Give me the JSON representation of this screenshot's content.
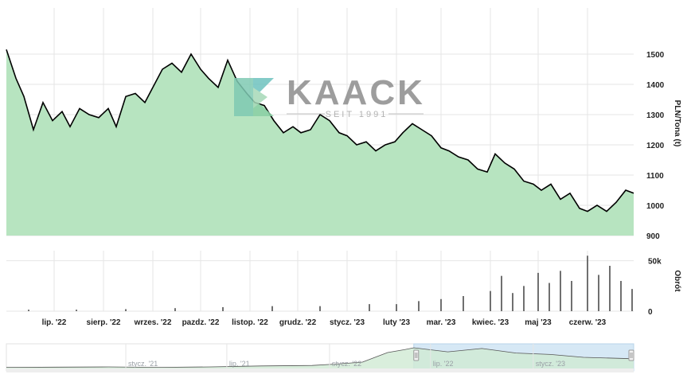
{
  "chart_data": [
    {
      "type": "area",
      "title": "",
      "ylabel": "PLN/Tona (t)",
      "ylim": [
        900,
        1600
      ],
      "yticks": [
        900,
        1000,
        1100,
        1200,
        1300,
        1400,
        1500
      ],
      "x_start": "2022-06-01",
      "x_end": "2023-06-30",
      "x_tick_labels": [
        "lip. '22",
        "sierp. '22",
        "wrzes. '22",
        "pazdz. '22",
        "listop. '22",
        "grudz. '22",
        "stycz. '23",
        "luty '23",
        "mar. '23",
        "kwiec. '23",
        "maj '23",
        "czerw. '23"
      ],
      "x_tick_dates": [
        "2022-07-01",
        "2022-08-01",
        "2022-09-01",
        "2022-10-01",
        "2022-11-01",
        "2022-12-01",
        "2023-01-01",
        "2023-02-01",
        "2023-03-01",
        "2023-04-01",
        "2023-05-01",
        "2023-06-01"
      ],
      "fill_color": "#b7e4c0",
      "line_color": "#000000",
      "series": [
        {
          "x": [
            "2022-06-01",
            "2022-06-07",
            "2022-06-12",
            "2022-06-18",
            "2022-06-24",
            "2022-06-30",
            "2022-07-06",
            "2022-07-11",
            "2022-07-17",
            "2022-07-23",
            "2022-07-29",
            "2022-08-04",
            "2022-08-09",
            "2022-08-15",
            "2022-08-21",
            "2022-08-27",
            "2022-09-02",
            "2022-09-07",
            "2022-09-13",
            "2022-09-19",
            "2022-09-25",
            "2022-10-01",
            "2022-10-06",
            "2022-10-12",
            "2022-10-18",
            "2022-10-24",
            "2022-10-30",
            "2022-11-04",
            "2022-11-10",
            "2022-11-16",
            "2022-11-22",
            "2022-11-28",
            "2022-12-03",
            "2022-12-09",
            "2022-12-15",
            "2022-12-21",
            "2022-12-27",
            "2023-01-01",
            "2023-01-07",
            "2023-01-13",
            "2023-01-19",
            "2023-01-25",
            "2023-01-31",
            "2023-02-05",
            "2023-02-11",
            "2023-02-17",
            "2023-02-23",
            "2023-03-01",
            "2023-03-06",
            "2023-03-12",
            "2023-03-18",
            "2023-03-24",
            "2023-03-30",
            "2023-04-04",
            "2023-04-10",
            "2023-04-16",
            "2023-04-22",
            "2023-04-28",
            "2023-05-03",
            "2023-05-09",
            "2023-05-15",
            "2023-05-21",
            "2023-05-27",
            "2023-06-01",
            "2023-06-07",
            "2023-06-13",
            "2023-06-19",
            "2023-06-25",
            "2023-06-30"
          ],
          "y": [
            1515,
            1420,
            1360,
            1250,
            1340,
            1280,
            1310,
            1260,
            1320,
            1300,
            1290,
            1320,
            1260,
            1360,
            1370,
            1340,
            1400,
            1450,
            1470,
            1440,
            1500,
            1450,
            1420,
            1390,
            1480,
            1410,
            1370,
            1340,
            1330,
            1280,
            1240,
            1260,
            1240,
            1250,
            1300,
            1280,
            1240,
            1230,
            1200,
            1210,
            1180,
            1200,
            1210,
            1240,
            1270,
            1250,
            1230,
            1190,
            1180,
            1160,
            1150,
            1120,
            1110,
            1170,
            1140,
            1120,
            1080,
            1070,
            1050,
            1070,
            1020,
            1040,
            990,
            980,
            1000,
            980,
            1010,
            1050,
            1040
          ]
        }
      ]
    },
    {
      "type": "bar",
      "title": "",
      "ylabel": "Obrót",
      "ylim": [
        0,
        60000
      ],
      "yticks": [
        0,
        50000
      ],
      "ytick_labels": [
        "0",
        "50k"
      ],
      "bar_color": "#707070",
      "series": [
        {
          "x": [
            "2022-06-15",
            "2022-07-15",
            "2022-08-15",
            "2022-09-15",
            "2022-10-15",
            "2022-11-15",
            "2022-12-15",
            "2023-01-15",
            "2023-02-01",
            "2023-02-15",
            "2023-03-01",
            "2023-03-15",
            "2023-04-01",
            "2023-04-08",
            "2023-04-15",
            "2023-04-22",
            "2023-05-01",
            "2023-05-08",
            "2023-05-15",
            "2023-05-22",
            "2023-06-01",
            "2023-06-08",
            "2023-06-15",
            "2023-06-22",
            "2023-06-29"
          ],
          "y": [
            1500,
            1500,
            2000,
            3000,
            4000,
            5000,
            5000,
            7000,
            7000,
            10000,
            12000,
            15000,
            20000,
            35000,
            18000,
            25000,
            38000,
            28000,
            40000,
            30000,
            55000,
            36000,
            45000,
            30000,
            22000
          ]
        }
      ]
    },
    {
      "type": "area",
      "title": "",
      "x_tick_labels": [
        "stycz. '21",
        "lip. '21",
        "stycz. '22",
        "lip. '22",
        "stycz. '23"
      ],
      "x_tick_dates": [
        "2021-01-01",
        "2021-07-01",
        "2022-01-01",
        "2022-07-01",
        "2023-01-01"
      ],
      "x_start": "2020-06-01",
      "x_end": "2023-06-30",
      "selected_range": [
        "2022-06-01",
        "2023-06-30"
      ],
      "selection_color": "#d6e8f5",
      "fill_color": "#cfead3",
      "series": [
        {
          "x": [
            "2020-06-01",
            "2020-09-01",
            "2020-12-01",
            "2021-03-01",
            "2021-06-01",
            "2021-09-01",
            "2021-12-01",
            "2022-01-15",
            "2022-03-01",
            "2022-04-15",
            "2022-05-15",
            "2022-06-01",
            "2022-08-01",
            "2022-10-01",
            "2022-12-01",
            "2023-02-01",
            "2023-04-01",
            "2023-06-30"
          ],
          "y": [
            680,
            690,
            700,
            680,
            700,
            740,
            760,
            820,
            900,
            1300,
            1420,
            1500,
            1330,
            1470,
            1280,
            1220,
            1100,
            1040
          ]
        }
      ]
    }
  ],
  "watermark": {
    "brand": "KAACK",
    "tagline": "SEIT 1991"
  }
}
